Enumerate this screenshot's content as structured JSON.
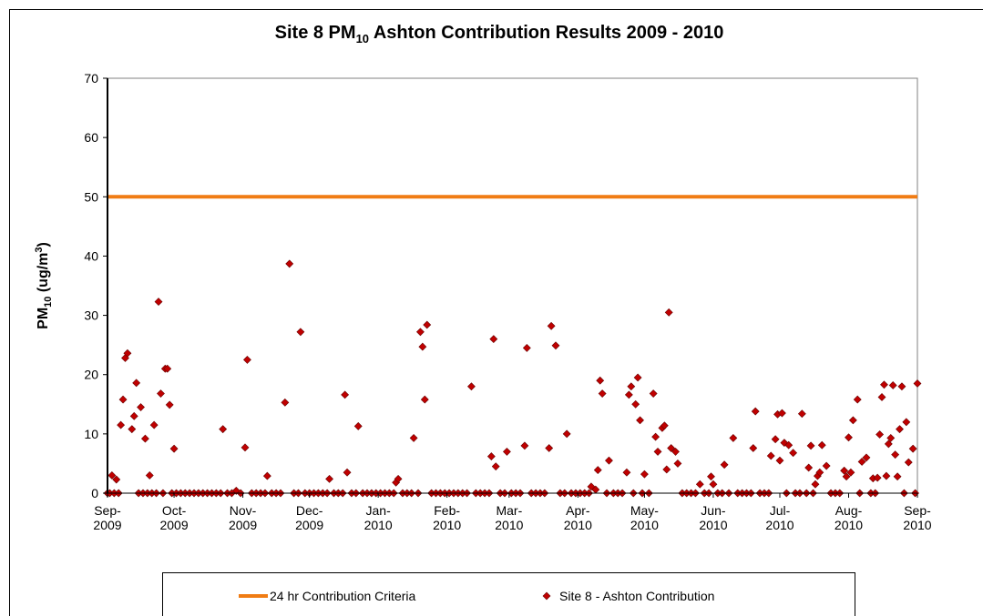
{
  "chart_data": {
    "type": "scatter",
    "title": [
      "Site 8 PM",
      "10",
      " Ashton Contribution Results 2009 - 2010"
    ],
    "y_label": [
      "PM",
      "10",
      " (ug/m",
      "3",
      ")"
    ],
    "xlim": [
      0,
      365
    ],
    "xticks": [
      {
        "value": 0,
        "label": "Sep-\n2009"
      },
      {
        "value": 30,
        "label": "Oct-\n2009"
      },
      {
        "value": 61,
        "label": "Nov-\n2009"
      },
      {
        "value": 91,
        "label": "Dec-\n2009"
      },
      {
        "value": 122,
        "label": "Jan-\n2010"
      },
      {
        "value": 153,
        "label": "Feb-\n2010"
      },
      {
        "value": 181,
        "label": "Mar-\n2010"
      },
      {
        "value": 212,
        "label": "Apr-\n2010"
      },
      {
        "value": 242,
        "label": "May-\n2010"
      },
      {
        "value": 273,
        "label": "Jun-\n2010"
      },
      {
        "value": 303,
        "label": "Jul-\n2010"
      },
      {
        "value": 334,
        "label": "Aug-\n2010"
      },
      {
        "value": 365,
        "label": "Sep-\n2010"
      }
    ],
    "ylim": [
      0,
      70
    ],
    "yticks": [
      0,
      10,
      20,
      30,
      40,
      50,
      60,
      70
    ],
    "series": [
      {
        "name": "24 hr Contribution Criteria",
        "type": "line",
        "color": "#f07c14",
        "x": [
          0,
          365
        ],
        "values": [
          50,
          50
        ]
      },
      {
        "name": "Site 8 - Ashton Contribution",
        "type": "scatter",
        "color": "#c00000",
        "x": [
          2,
          4,
          6,
          7,
          8,
          9,
          11,
          12,
          13,
          15,
          17,
          19,
          21,
          23,
          24,
          26,
          27,
          28,
          30,
          52,
          58,
          62,
          63,
          72,
          80,
          82,
          87,
          100,
          107,
          108,
          113,
          130,
          131,
          138,
          141,
          142,
          143,
          144,
          164,
          173,
          174,
          175,
          180,
          188,
          189,
          199,
          200,
          202,
          207,
          218,
          220,
          221,
          222,
          223,
          226,
          234,
          235,
          236,
          238,
          239,
          240,
          242,
          246,
          247,
          248,
          250,
          251,
          252,
          253,
          254,
          256,
          257,
          267,
          272,
          273,
          278,
          282,
          291,
          292,
          299,
          301,
          302,
          303,
          304,
          305,
          307,
          309,
          313,
          316,
          317,
          319,
          320,
          321,
          322,
          324,
          332,
          333,
          334,
          335,
          336,
          338,
          340,
          342,
          345,
          347,
          348,
          349,
          350,
          351,
          352,
          353,
          354,
          355,
          356,
          357,
          358,
          360,
          361,
          363,
          365,
          0,
          1,
          3,
          5,
          14,
          16,
          18,
          20,
          22,
          25,
          29,
          31,
          33,
          35,
          37,
          39,
          41,
          43,
          45,
          47,
          49,
          51,
          54,
          56,
          60,
          65,
          67,
          69,
          71,
          74,
          76,
          78,
          84,
          86,
          89,
          91,
          93,
          95,
          97,
          99,
          102,
          104,
          106,
          110,
          112,
          115,
          117,
          119,
          121,
          123,
          125,
          127,
          129,
          133,
          135,
          137,
          140,
          146,
          148,
          150,
          152,
          154,
          156,
          158,
          160,
          162,
          166,
          168,
          170,
          172,
          177,
          179,
          182,
          184,
          186,
          191,
          193,
          195,
          197,
          204,
          206,
          209,
          211,
          213,
          215,
          217,
          225,
          228,
          230,
          232,
          237,
          241,
          244,
          259,
          261,
          263,
          265,
          269,
          271,
          275,
          277,
          280,
          284,
          286,
          288,
          290,
          294,
          296,
          298,
          306,
          310,
          312,
          315,
          318,
          326,
          328,
          330,
          339,
          344,
          346,
          359,
          364
        ],
        "values": [
          3,
          2.3,
          11.5,
          15.8,
          22.8,
          23.6,
          10.8,
          13,
          18.6,
          14.5,
          9.2,
          3,
          11.5,
          32.3,
          16.8,
          21,
          21,
          14.9,
          7.5,
          10.8,
          0.4,
          7.7,
          22.5,
          2.9,
          15.3,
          38.7,
          27.2,
          2.4,
          16.6,
          3.5,
          11.3,
          1.8,
          2.4,
          9.3,
          27.2,
          24.7,
          15.8,
          28.4,
          18,
          6.2,
          26,
          4.5,
          7,
          8,
          24.5,
          7.6,
          28.2,
          24.9,
          10,
          1.1,
          0.6,
          3.9,
          19,
          16.8,
          5.5,
          3.5,
          16.6,
          18,
          15,
          19.5,
          12.3,
          3.2,
          16.8,
          9.5,
          7,
          11,
          11.4,
          4,
          30.5,
          7.6,
          7,
          5,
          1.5,
          2.8,
          1.5,
          4.8,
          9.3,
          7.6,
          13.8,
          6.3,
          9.1,
          13.3,
          5.5,
          13.5,
          8.5,
          8.1,
          6.8,
          13.4,
          4.3,
          8,
          1.5,
          2.9,
          3.5,
          8.1,
          4.6,
          3.8,
          2.8,
          9.4,
          3.5,
          12.3,
          15.8,
          5.3,
          6,
          2.5,
          2.6,
          9.9,
          16.2,
          18.3,
          2.9,
          8.3,
          9.3,
          18.2,
          6.5,
          2.8,
          10.8,
          18,
          12,
          5.2,
          7.5,
          18.5,
          0,
          0,
          0,
          0,
          0,
          0,
          0,
          0,
          0,
          0,
          0,
          0,
          0,
          0,
          0,
          0,
          0,
          0,
          0,
          0,
          0,
          0,
          0,
          0,
          0,
          0,
          0,
          0,
          0,
          0,
          0,
          0,
          0,
          0,
          0,
          0,
          0,
          0,
          0,
          0,
          0,
          0,
          0,
          0,
          0,
          0,
          0,
          0,
          0,
          0,
          0,
          0,
          0,
          0,
          0,
          0,
          0,
          0,
          0,
          0,
          0,
          0,
          0,
          0,
          0,
          0,
          0,
          0,
          0,
          0,
          0,
          0,
          0,
          0,
          0,
          0,
          0,
          0,
          0,
          0,
          0,
          0,
          0,
          0,
          0,
          0,
          0,
          0,
          0,
          0,
          0,
          0,
          0,
          0,
          0,
          0,
          0,
          0,
          0,
          0,
          0,
          0,
          0,
          0,
          0,
          0,
          0,
          0,
          0,
          0,
          0,
          0,
          0,
          0,
          0,
          0,
          0,
          0,
          0,
          0,
          0,
          0
        ]
      }
    ]
  }
}
